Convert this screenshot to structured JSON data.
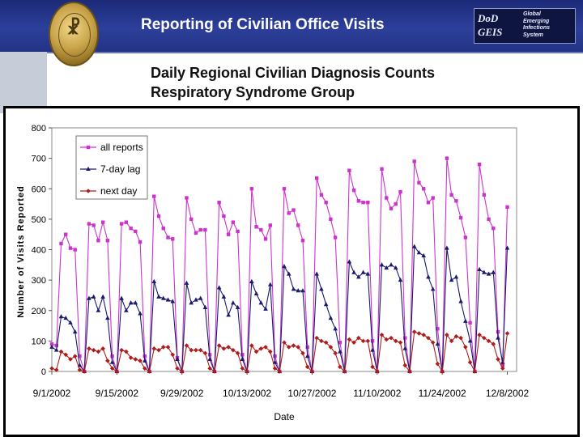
{
  "slide": {
    "title": "Reporting of Civilian Office Visits",
    "subtitle_line1": "Daily Regional Civilian Diagnosis Counts",
    "subtitle_line2": "Respiratory Syndrome Group",
    "logo_mark": "DoD GEIS",
    "logo_text": [
      "Global",
      "Emerging",
      "Infections",
      "System"
    ]
  },
  "colors": {
    "header": "#233385",
    "all_reports": "#cc33cc",
    "lag7": "#1a1a6e",
    "next_day": "#b01c1c"
  },
  "chart_data": {
    "type": "line",
    "title": "",
    "xlabel": "Date",
    "ylabel": "Number of Visits Reported",
    "ylim": [
      0,
      800
    ],
    "xlim_day": [
      0,
      100
    ],
    "yticks": [
      0,
      100,
      200,
      300,
      400,
      500,
      600,
      700,
      800
    ],
    "xticks": [
      {
        "day": 0,
        "label": "9/1/2002"
      },
      {
        "day": 14,
        "label": "9/15/2002"
      },
      {
        "day": 28,
        "label": "9/29/2002"
      },
      {
        "day": 42,
        "label": "10/13/2002"
      },
      {
        "day": 56,
        "label": "10/27/2002"
      },
      {
        "day": 70,
        "label": "11/10/2002"
      },
      {
        "day": 84,
        "label": "11/24/2002"
      },
      {
        "day": 98,
        "label": "12/8/2002"
      }
    ],
    "grid": false,
    "legend_position": "top-left",
    "series": [
      {
        "name": "all reports",
        "marker": "square",
        "color": "#cc33cc",
        "values": [
          90,
          85,
          420,
          450,
          405,
          400,
          50,
          0,
          485,
          480,
          430,
          490,
          430,
          50,
          0,
          485,
          490,
          470,
          460,
          425,
          50,
          0,
          575,
          510,
          470,
          440,
          435,
          45,
          0,
          570,
          500,
          455,
          465,
          465,
          55,
          0,
          555,
          510,
          450,
          490,
          460,
          55,
          0,
          600,
          475,
          465,
          435,
          480,
          50,
          0,
          600,
          520,
          530,
          480,
          430,
          80,
          0,
          635,
          580,
          555,
          500,
          440,
          95,
          0,
          660,
          595,
          560,
          555,
          555,
          100,
          0,
          665,
          570,
          535,
          550,
          590,
          110,
          0,
          690,
          620,
          600,
          555,
          570,
          140,
          0,
          700,
          580,
          560,
          505,
          440,
          160,
          0,
          680,
          580,
          500,
          470,
          130,
          20,
          540
        ]
      },
      {
        "name": "7-day lag",
        "marker": "triangle",
        "color": "#1a1a6e",
        "values": [
          80,
          70,
          180,
          175,
          160,
          130,
          20,
          0,
          240,
          245,
          200,
          245,
          175,
          30,
          0,
          240,
          200,
          225,
          225,
          190,
          35,
          0,
          295,
          245,
          240,
          235,
          230,
          40,
          0,
          290,
          225,
          235,
          240,
          210,
          40,
          0,
          275,
          245,
          185,
          225,
          210,
          40,
          0,
          295,
          255,
          225,
          205,
          285,
          30,
          0,
          345,
          320,
          270,
          265,
          265,
          50,
          0,
          320,
          270,
          220,
          175,
          140,
          65,
          0,
          360,
          325,
          310,
          325,
          320,
          70,
          0,
          350,
          340,
          350,
          340,
          300,
          75,
          0,
          410,
          390,
          380,
          310,
          270,
          90,
          0,
          405,
          300,
          310,
          230,
          165,
          100,
          0,
          335,
          325,
          320,
          325,
          110,
          30,
          405
        ]
      },
      {
        "name": "next day",
        "marker": "diamond",
        "color": "#b01c1c",
        "values": [
          10,
          5,
          65,
          55,
          40,
          50,
          5,
          0,
          75,
          70,
          65,
          75,
          35,
          10,
          0,
          70,
          65,
          45,
          40,
          35,
          10,
          0,
          75,
          70,
          80,
          80,
          55,
          10,
          0,
          85,
          70,
          70,
          70,
          60,
          10,
          0,
          85,
          75,
          80,
          70,
          60,
          10,
          0,
          85,
          65,
          75,
          80,
          65,
          10,
          0,
          95,
          80,
          85,
          80,
          60,
          15,
          0,
          110,
          100,
          95,
          80,
          60,
          15,
          0,
          105,
          95,
          110,
          100,
          100,
          15,
          0,
          120,
          105,
          110,
          100,
          95,
          20,
          0,
          130,
          125,
          120,
          110,
          95,
          25,
          0,
          120,
          100,
          115,
          110,
          80,
          30,
          0,
          120,
          110,
          100,
          90,
          40,
          10,
          125
        ]
      }
    ]
  }
}
